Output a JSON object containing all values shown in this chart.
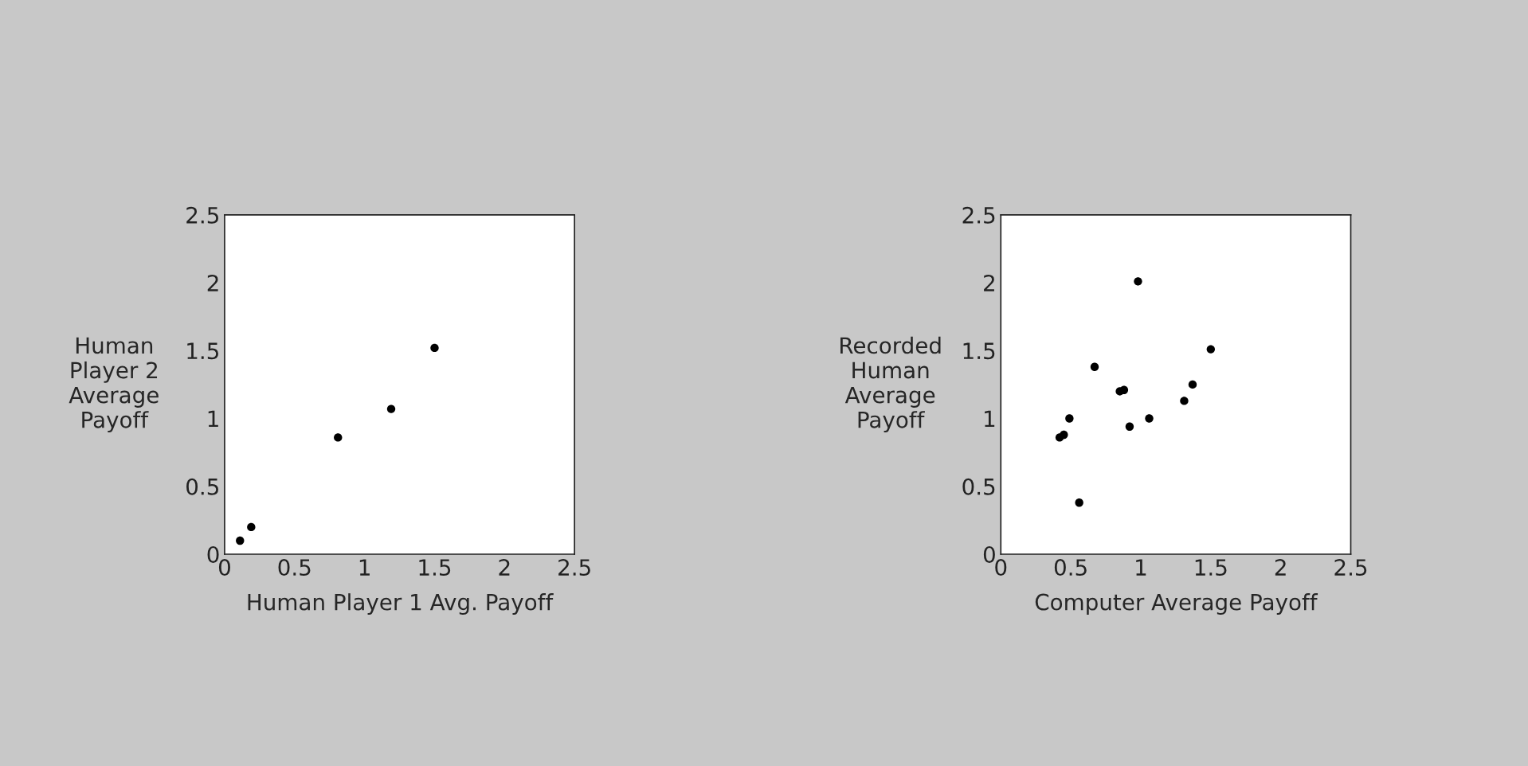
{
  "chart_data": [
    {
      "type": "scatter",
      "xlabel": "Human Player 1 Avg. Payoff",
      "ylabel": "Human\nPlayer 2\nAverage\nPayoff",
      "x": [
        0.11,
        0.19,
        0.81,
        1.19,
        1.5
      ],
      "values": [
        0.1,
        0.2,
        0.86,
        1.07,
        1.52
      ],
      "color": "#000000",
      "marker": "circle",
      "xlim": [
        0,
        2.5
      ],
      "ylim": [
        0,
        2.5
      ],
      "xticks": [
        0,
        0.5,
        1,
        1.5,
        2,
        2.5
      ],
      "yticks": [
        0,
        0.5,
        1,
        1.5,
        2,
        2.5
      ],
      "grid": false
    },
    {
      "type": "scatter",
      "xlabel": "Computer Average Payoff",
      "ylabel": "Recorded\nHuman\nAverage\nPayoff",
      "x": [
        0.42,
        0.45,
        0.49,
        0.56,
        0.67,
        0.85,
        0.88,
        0.92,
        0.98,
        1.06,
        1.31,
        1.37,
        1.5
      ],
      "values": [
        0.86,
        0.88,
        1.0,
        0.38,
        1.38,
        1.2,
        1.21,
        0.94,
        2.01,
        1.0,
        1.13,
        1.25,
        1.51
      ],
      "color": "#000000",
      "marker": "circle",
      "xlim": [
        0,
        2.5
      ],
      "ylim": [
        0,
        2.5
      ],
      "xticks": [
        0,
        0.5,
        1,
        1.5,
        2,
        2.5
      ],
      "yticks": [
        0,
        0.5,
        1,
        1.5,
        2,
        2.5
      ],
      "grid": false
    }
  ]
}
